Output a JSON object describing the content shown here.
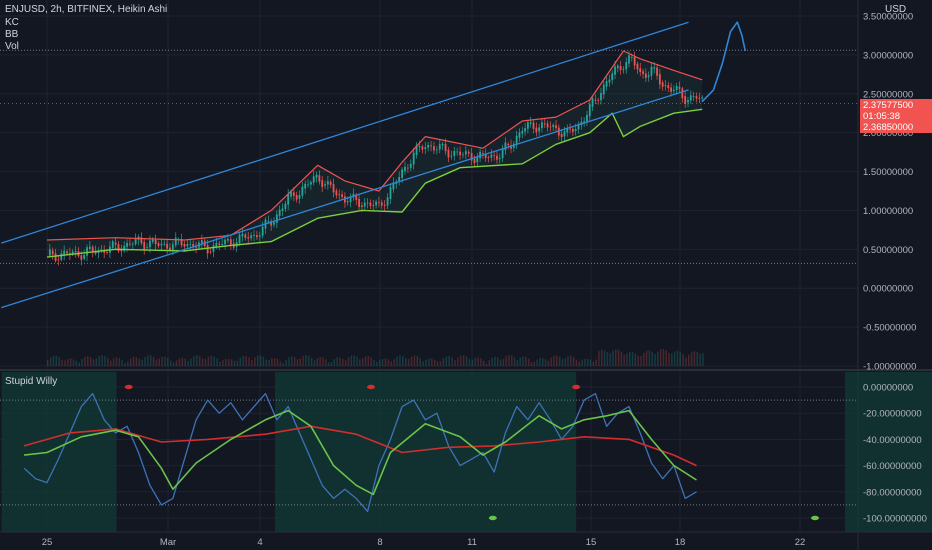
{
  "header": {
    "symbol_line": "ENJUSD, 2h, BITFINEX, Heikin Ashi",
    "indicators": [
      "KC",
      "BB",
      "Vol"
    ],
    "currency": "USD"
  },
  "price_tag": {
    "price": "2.37577500",
    "countdown": "01:05:38",
    "low": "2.36850000"
  },
  "oscillator": {
    "title": "Stupid Willy"
  },
  "colors": {
    "background": "#131722",
    "grid": "#1f2330",
    "up": "#26a69a",
    "down": "#ef5350",
    "kc": "#f05350",
    "bb": "#7bcf39",
    "channel": "#2f86d9",
    "osc_line": "#3d73b8",
    "osc_signal": "#d12e2e",
    "osc_fast": "#6ac34a",
    "osc_shade": "#123a35",
    "tag": "#f05350"
  },
  "chart_data": [
    {
      "type": "candlestick",
      "title": "ENJUSD, 2h, BITFINEX, Heikin Ashi",
      "x_tick_labels": [
        "25",
        "Mar",
        "4",
        "8",
        "11",
        "15",
        "18",
        "22"
      ],
      "y_tick_labels": [
        "3.50000000",
        "3.00000000",
        "2.50000000",
        "2.00000000",
        "1.50000000",
        "1.00000000",
        "0.50000000",
        "0.00000000",
        "-0.50000000",
        "-1.00000000"
      ],
      "ylim": [
        -1.05,
        3.55
      ],
      "close_path": [
        [
          0,
          0.42
        ],
        [
          3,
          0.45
        ],
        [
          6,
          0.52
        ],
        [
          8,
          0.6
        ],
        [
          10,
          0.55
        ],
        [
          12,
          0.58
        ],
        [
          14,
          0.52
        ],
        [
          16,
          0.6
        ],
        [
          18,
          0.68
        ],
        [
          19.5,
          0.85
        ],
        [
          21,
          1.15
        ],
        [
          22.5,
          1.3
        ],
        [
          23.6,
          1.45
        ],
        [
          24.5,
          1.3
        ],
        [
          26,
          1.15
        ],
        [
          27.5,
          1.1
        ],
        [
          29,
          1.05
        ],
        [
          30,
          1.25
        ],
        [
          31,
          1.5
        ],
        [
          32,
          1.72
        ],
        [
          33,
          1.85
        ],
        [
          34,
          1.8
        ],
        [
          36,
          1.72
        ],
        [
          38,
          1.68
        ],
        [
          39.5,
          1.72
        ],
        [
          40.5,
          1.85
        ],
        [
          41.5,
          2.05
        ],
        [
          43,
          2.1
        ],
        [
          44.5,
          2.05
        ],
        [
          45.5,
          1.98
        ],
        [
          46.5,
          2.1
        ],
        [
          47.5,
          2.3
        ],
        [
          48.5,
          2.55
        ],
        [
          49.5,
          2.75
        ],
        [
          50.5,
          2.9
        ],
        [
          51.2,
          2.95
        ],
        [
          52,
          2.75
        ],
        [
          53,
          2.8
        ],
        [
          54,
          2.62
        ],
        [
          55,
          2.55
        ],
        [
          56,
          2.45
        ],
        [
          57,
          2.45
        ],
        [
          57.5,
          2.4
        ]
      ],
      "kc_upper": [
        [
          0,
          0.62
        ],
        [
          6,
          0.65
        ],
        [
          12,
          0.62
        ],
        [
          16,
          0.68
        ],
        [
          19.5,
          1.0
        ],
        [
          23.6,
          1.58
        ],
        [
          26,
          1.38
        ],
        [
          29,
          1.25
        ],
        [
          31,
          1.62
        ],
        [
          33,
          1.95
        ],
        [
          38,
          1.8
        ],
        [
          41.5,
          2.15
        ],
        [
          44.5,
          2.2
        ],
        [
          47.5,
          2.42
        ],
        [
          50.5,
          3.05
        ],
        [
          52,
          2.95
        ],
        [
          55,
          2.8
        ],
        [
          57.5,
          2.68
        ]
      ],
      "bb_lower": [
        [
          0,
          0.4
        ],
        [
          6,
          0.5
        ],
        [
          12,
          0.48
        ],
        [
          16,
          0.55
        ],
        [
          19.5,
          0.6
        ],
        [
          23.6,
          0.9
        ],
        [
          27.5,
          1.0
        ],
        [
          31,
          0.98
        ],
        [
          33,
          1.35
        ],
        [
          36,
          1.55
        ],
        [
          41.5,
          1.6
        ],
        [
          44.5,
          1.85
        ],
        [
          47.5,
          2.0
        ],
        [
          49.5,
          2.25
        ],
        [
          50.5,
          1.95
        ],
        [
          52,
          2.08
        ],
        [
          55,
          2.25
        ],
        [
          57.5,
          2.3
        ]
      ],
      "channel_lines": [
        {
          "from": [
            -4,
            0.58
          ],
          "to": [
            56.3,
            3.42
          ]
        },
        {
          "from": [
            -4,
            -0.25
          ],
          "to": [
            56.3,
            2.55
          ]
        }
      ],
      "forecast": [
        [
          57.5,
          2.4
        ],
        [
          58.5,
          2.55
        ],
        [
          59.3,
          2.9
        ],
        [
          60.0,
          3.3
        ],
        [
          60.6,
          3.42
        ],
        [
          61.0,
          3.25
        ],
        [
          61.3,
          3.05
        ]
      ],
      "dotted_levels": [
        3.06,
        0.32
      ],
      "volume_level_bottom": -1.0
    },
    {
      "type": "line",
      "title": "Stupid Willy",
      "y_tick_labels": [
        "0.00000000",
        "-20.00000000",
        "-40.00000000",
        "-60.00000000",
        "-80.00000000",
        "-100.00000000"
      ],
      "ylim": [
        -103,
        3
      ],
      "reference_levels": [
        -10,
        -90
      ],
      "series": [
        {
          "name": "",
          "values": [
            [
              -2,
              -62
            ],
            [
              -1,
              -70
            ],
            [
              0,
              -73
            ],
            [
              1,
              -55
            ],
            [
              2,
              -35
            ],
            [
              3,
              -15
            ],
            [
              4,
              -5
            ],
            [
              5,
              -25
            ],
            [
              6,
              -35
            ],
            [
              7,
              -30
            ],
            [
              8,
              -50
            ],
            [
              9,
              -75
            ],
            [
              10,
              -90
            ],
            [
              11,
              -85
            ],
            [
              12,
              -55
            ],
            [
              13,
              -25
            ],
            [
              14,
              -10
            ],
            [
              15,
              -20
            ],
            [
              16,
              -12
            ],
            [
              17,
              -25
            ],
            [
              18,
              -15
            ],
            [
              19,
              -5
            ],
            [
              20,
              -25
            ],
            [
              21,
              -15
            ],
            [
              22,
              -35
            ],
            [
              23,
              -55
            ],
            [
              24,
              -75
            ],
            [
              25,
              -85
            ],
            [
              26,
              -78
            ],
            [
              27,
              -85
            ],
            [
              28,
              -95
            ],
            [
              29,
              -60
            ],
            [
              30,
              -40
            ],
            [
              31,
              -15
            ],
            [
              32,
              -10
            ],
            [
              33,
              -25
            ],
            [
              34,
              -20
            ],
            [
              35,
              -45
            ],
            [
              36,
              -60
            ],
            [
              37,
              -55
            ],
            [
              38,
              -50
            ],
            [
              39,
              -65
            ],
            [
              40,
              -35
            ],
            [
              41,
              -15
            ],
            [
              42,
              -25
            ],
            [
              43,
              -12
            ],
            [
              44,
              -25
            ],
            [
              45,
              -40
            ],
            [
              46,
              -30
            ],
            [
              47,
              -10
            ],
            [
              48,
              -5
            ],
            [
              49,
              -30
            ],
            [
              50,
              -20
            ],
            [
              51,
              -15
            ],
            [
              52,
              -35
            ],
            [
              53,
              -58
            ],
            [
              54,
              -70
            ],
            [
              55,
              -60
            ],
            [
              56,
              -85
            ],
            [
              57,
              -80
            ]
          ]
        },
        {
          "name": "",
          "values": [
            [
              -2,
              -52
            ],
            [
              0,
              -50
            ],
            [
              3,
              -38
            ],
            [
              6,
              -33
            ],
            [
              8,
              -38
            ],
            [
              10,
              -62
            ],
            [
              11,
              -78
            ],
            [
              13,
              -58
            ],
            [
              16,
              -40
            ],
            [
              19,
              -25
            ],
            [
              21,
              -18
            ],
            [
              23,
              -30
            ],
            [
              25,
              -60
            ],
            [
              27,
              -75
            ],
            [
              28.5,
              -82
            ],
            [
              30,
              -50
            ],
            [
              33,
              -28
            ],
            [
              36,
              -38
            ],
            [
              38,
              -52
            ],
            [
              40,
              -42
            ],
            [
              43,
              -22
            ],
            [
              45,
              -32
            ],
            [
              47,
              -25
            ],
            [
              49,
              -22
            ],
            [
              51,
              -18
            ],
            [
              53,
              -40
            ],
            [
              55,
              -60
            ],
            [
              57,
              -71
            ]
          ]
        },
        {
          "name": "",
          "values": [
            [
              -2,
              -45
            ],
            [
              2,
              -35
            ],
            [
              6,
              -32
            ],
            [
              10,
              -42
            ],
            [
              14,
              -40
            ],
            [
              19,
              -36
            ],
            [
              23,
              -30
            ],
            [
              27,
              -36
            ],
            [
              31,
              -50
            ],
            [
              35,
              -46
            ],
            [
              39,
              -45
            ],
            [
              43,
              -42
            ],
            [
              47,
              -38
            ],
            [
              51,
              -40
            ],
            [
              55,
              -52
            ],
            [
              57,
              -60
            ]
          ]
        }
      ],
      "shaded_x_ranges": [
        [
          -1.5,
          2.3
        ],
        [
          7.5,
          17.5
        ],
        [
          26.5,
          32.5
        ],
        [
          37.5,
          42.5
        ],
        [
          46,
          49
        ]
      ]
    }
  ]
}
